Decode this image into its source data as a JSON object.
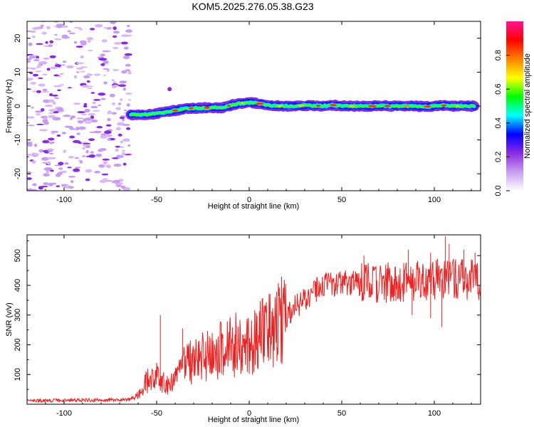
{
  "title": "KOM5.2025.276.05.38.G23",
  "chart_data": [
    {
      "type": "heatmap",
      "name": "spectrogram",
      "xlabel": "Height of straight line (km)",
      "ylabel": "Frequency (Hz)",
      "xlim": [
        -120,
        125
      ],
      "ylim": [
        -25,
        25
      ],
      "xticks": [
        -100,
        -50,
        0,
        50,
        100
      ],
      "yticks": [
        -20,
        -10,
        0,
        10,
        20
      ],
      "ridge": {
        "x": [
          -64,
          -55,
          -50,
          -45,
          -40,
          -35,
          -30,
          -25,
          -20,
          -15,
          -10,
          -5,
          0,
          5,
          10,
          15,
          20,
          25,
          30,
          35,
          40,
          45,
          50,
          55,
          60,
          65,
          70,
          75,
          80,
          85,
          90,
          95,
          100,
          105,
          110,
          115,
          122
        ],
        "freq": [
          -2.5,
          -2.5,
          -2.2,
          -1.8,
          -1.3,
          -0.8,
          -0.6,
          -0.6,
          -0.4,
          -0.5,
          0.2,
          0.8,
          1.0,
          0.8,
          0.2,
          0.1,
          0.0,
          0.0,
          0.2,
          0.1,
          0.0,
          0.3,
          0.0,
          0.0,
          0.0,
          -0.1,
          0.1,
          0.0,
          0.0,
          0.0,
          0.0,
          -0.2,
          0.0,
          0.2,
          0.0,
          0.0,
          0.0
        ]
      },
      "noise_region_x": [
        -120,
        -64
      ],
      "colorbar": {
        "label": "Normalized spectral amplitude",
        "range": [
          0.0,
          1.0
        ],
        "ticks": [
          "0.0",
          "0.2",
          "0.4",
          "0.6",
          "0.8"
        ],
        "colors": [
          "#ffffff",
          "#c89cf0",
          "#8a2be2",
          "#0000ff",
          "#00ffff",
          "#00ff00",
          "#ffff00",
          "#ff8000",
          "#ff0000",
          "#ff1493"
        ]
      }
    },
    {
      "type": "line",
      "name": "snr",
      "xlabel": "Height of straight line (km)",
      "ylabel": "SNR (v/v)",
      "xlim": [
        -120,
        125
      ],
      "ylim": [
        0,
        570
      ],
      "xticks": [
        -100,
        -50,
        0,
        50,
        100
      ],
      "yticks": [
        100,
        200,
        300,
        400,
        500
      ],
      "color": "#ee2222",
      "trend_x": [
        -120,
        -65,
        -60,
        -55,
        -50,
        -45,
        -40,
        -35,
        -30,
        -20,
        -10,
        0,
        10,
        20,
        25,
        30,
        35,
        40,
        50,
        60,
        70,
        80,
        90,
        100,
        110,
        125
      ],
      "trend_snr": [
        12,
        15,
        35,
        80,
        95,
        70,
        80,
        130,
        150,
        170,
        195,
        215,
        240,
        300,
        330,
        355,
        380,
        395,
        405,
        408,
        410,
        412,
        415,
        420,
        420,
        420
      ],
      "spikes": [
        {
          "x": -48,
          "snr": 300
        },
        {
          "x": -36,
          "snr": 255
        },
        {
          "x": -7,
          "snr": 265
        },
        {
          "x": 62,
          "snr": 500
        },
        {
          "x": 86,
          "snr": 520
        },
        {
          "x": 98,
          "snr": 510
        },
        {
          "x": 106,
          "snr": 565
        },
        {
          "x": 108,
          "snr": 540
        },
        {
          "x": 116,
          "snr": 520
        },
        {
          "x": 122,
          "snr": 510
        },
        {
          "x": 104,
          "snr": 260
        },
        {
          "x": 98,
          "snr": 290
        },
        {
          "x": 88,
          "snr": 300
        }
      ]
    }
  ]
}
